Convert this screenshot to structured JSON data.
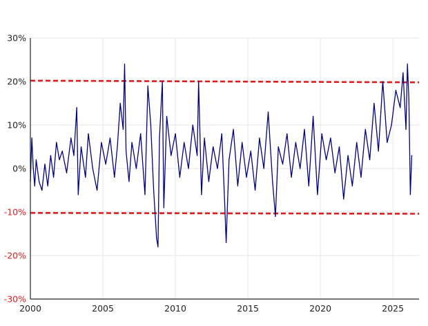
{
  "chart_data": {
    "type": "line",
    "title": "",
    "xlabel": "",
    "ylabel": "",
    "xlim": [
      2000,
      2026.8
    ],
    "ylim": [
      -30,
      30
    ],
    "x_ticks": [
      2000,
      2005,
      2010,
      2015,
      2020,
      2025
    ],
    "x_tick_labels": [
      "2000",
      "2005",
      "2010",
      "2015",
      "2020",
      "2025"
    ],
    "y_ticks": [
      30,
      20,
      10,
      0,
      -10,
      -20,
      -30
    ],
    "y_tick_labels": [
      "30%",
      "20%",
      "10%",
      "0%",
      "-10%",
      "-20%",
      "-30%"
    ],
    "y_tick_label_colors": [
      "#222222",
      "#222222",
      "#222222",
      "#222222",
      "#e31a1c",
      "#e31a1c",
      "#e31a1c"
    ],
    "grid": true,
    "colors": {
      "series": "#000080",
      "threshold": "#e31a1c",
      "axis": "#222222",
      "grid": "#e6e6e6"
    },
    "reference_lines": [
      {
        "x": [
          2000,
          2026.8
        ],
        "y": [
          20.2,
          19.8
        ],
        "style": "dashed"
      },
      {
        "x": [
          2000,
          2026.8
        ],
        "y": [
          -10.2,
          -10.4
        ],
        "style": "dashed"
      }
    ],
    "series": [
      {
        "x": [
          2000.0,
          2000.1,
          2000.2,
          2000.3,
          2000.4,
          2000.6,
          2000.8,
          2001.0,
          2001.2,
          2001.4,
          2001.6,
          2001.8,
          2002.0,
          2002.2,
          2002.5,
          2002.8,
          2003.0,
          2003.2,
          2003.3,
          2003.5,
          2003.8,
          2004.0,
          2004.3,
          2004.6,
          2004.9,
          2005.2,
          2005.5,
          2005.8,
          2006.0,
          2006.2,
          2006.4,
          2006.5,
          2006.6,
          2006.8,
          2007.0,
          2007.3,
          2007.6,
          2007.9,
          2008.1,
          2008.3,
          2008.5,
          2008.7,
          2008.8,
          2008.9,
          2009.1,
          2009.2,
          2009.4,
          2009.7,
          2010.0,
          2010.3,
          2010.6,
          2010.9,
          2011.2,
          2011.5,
          2011.6,
          2011.8,
          2012.0,
          2012.3,
          2012.6,
          2012.9,
          2013.2,
          2013.4,
          2013.5,
          2013.7,
          2014.0,
          2014.3,
          2014.6,
          2014.9,
          2015.2,
          2015.5,
          2015.8,
          2016.1,
          2016.4,
          2016.7,
          2016.9,
          2017.1,
          2017.4,
          2017.7,
          2018.0,
          2018.3,
          2018.6,
          2018.9,
          2019.2,
          2019.5,
          2019.8,
          2020.1,
          2020.4,
          2020.7,
          2021.0,
          2021.3,
          2021.6,
          2021.9,
          2022.2,
          2022.5,
          2022.8,
          2023.1,
          2023.4,
          2023.7,
          2024.0,
          2024.3,
          2024.6,
          2024.9,
          2025.2,
          2025.5,
          2025.7,
          2025.9,
          2026.0,
          2026.1,
          2026.2,
          2026.3
        ],
        "y": [
          -3,
          7,
          0,
          -4,
          2,
          -3,
          -5,
          1,
          -4,
          3,
          -2,
          6,
          2,
          4,
          -1,
          7,
          3,
          14,
          -6,
          5,
          -2,
          8,
          0,
          -5,
          6,
          1,
          7,
          -2,
          5,
          15,
          9,
          24,
          4,
          -3,
          6,
          0,
          8,
          -6,
          19,
          10,
          -5,
          -16,
          -18,
          7,
          20,
          -9,
          12,
          3,
          8,
          -2,
          6,
          0,
          10,
          3,
          20,
          -6,
          7,
          -3,
          5,
          0,
          8,
          -8,
          -17,
          2,
          9,
          -4,
          6,
          -2,
          4,
          -5,
          7,
          0,
          13,
          -3,
          -11,
          5,
          1,
          8,
          -2,
          6,
          0,
          9,
          -4,
          12,
          -6,
          8,
          2,
          7,
          -1,
          5,
          -7,
          3,
          -4,
          6,
          -2,
          9,
          2,
          15,
          4,
          20,
          6,
          10,
          18,
          14,
          22,
          9,
          24,
          16,
          -6,
          3
        ]
      }
    ]
  }
}
